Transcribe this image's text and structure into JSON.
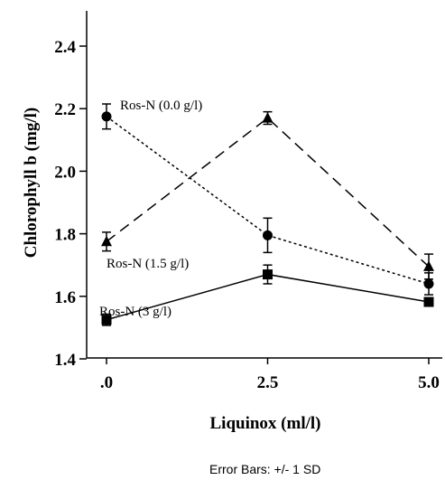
{
  "chart_data": {
    "type": "line",
    "xlabel": "Liquinox (ml/l)",
    "ylabel": "Chlorophyll b (mg/l)",
    "x": [
      0.0,
      2.5,
      5.0
    ],
    "x_tick_labels": [
      ".0",
      "2.5",
      "5.0"
    ],
    "y_ticks": [
      1.4,
      1.6,
      1.8,
      2.0,
      2.2,
      2.4
    ],
    "y_tick_labels": [
      "1.4",
      "1.6",
      "1.8",
      "2.0",
      "2.2",
      "2.4"
    ],
    "xlim": [
      0.0,
      5.0
    ],
    "ylim": [
      1.4,
      2.5
    ],
    "grid": false,
    "footnote": "Error Bars: +/- 1 SD",
    "series": [
      {
        "name": "Ros-N (0.0 g/l)",
        "marker": "circle",
        "line_style": "dotted",
        "values": [
          2.175,
          1.795,
          1.64
        ],
        "errors": [
          0.04,
          0.055,
          0.035
        ]
      },
      {
        "name": "Ros-N (1.5 g/l)",
        "marker": "triangle",
        "line_style": "dashed",
        "values": [
          1.775,
          2.17,
          1.695
        ],
        "errors": [
          0.03,
          0.02,
          0.04
        ]
      },
      {
        "name": "Ros-N (3 g/l)",
        "marker": "square",
        "line_style": "solid",
        "values": [
          1.525,
          1.67,
          1.582
        ],
        "errors": [
          0.018,
          0.03,
          0.012
        ]
      }
    ]
  }
}
